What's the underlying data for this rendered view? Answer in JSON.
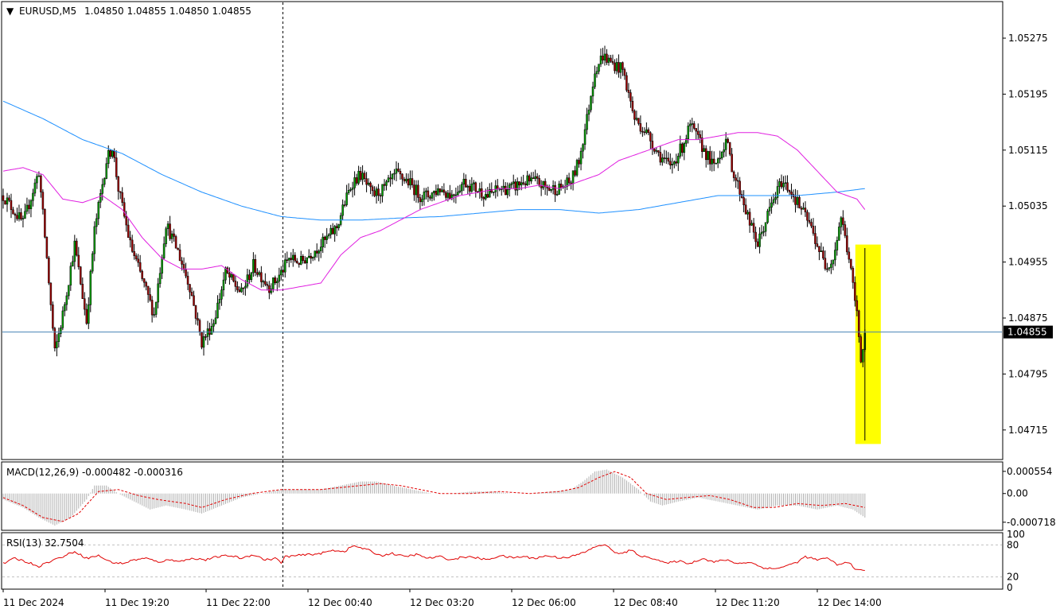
{
  "chart_data": {
    "type": "candlestick",
    "symbol": "EURUSD,M5",
    "ohlc_header": "1.04850 1.04855 1.04850 1.04855",
    "last_price": "1.04855",
    "price_ticks": [
      "1.05275",
      "1.05195",
      "1.05115",
      "1.05035",
      "1.04955",
      "1.04875",
      "1.04795",
      "1.04715"
    ],
    "ylim": [
      1.04675,
      1.05325
    ],
    "time_labels": [
      "11 Dec 2024",
      "11 Dec 19:20",
      "11 Dec 22:00",
      "12 Dec 00:40",
      "12 Dec 03:20",
      "12 Dec 06:00",
      "12 Dec 08:40",
      "12 Dec 11:20",
      "12 Dec 14:00"
    ],
    "close_path": [
      [
        0,
        1.0505
      ],
      [
        10,
        1.0501
      ],
      [
        18,
        1.05085
      ],
      [
        22,
        1.0496
      ],
      [
        26,
        1.04825
      ],
      [
        30,
        1.0488
      ],
      [
        36,
        1.0498
      ],
      [
        42,
        1.0487
      ],
      [
        46,
        1.05
      ],
      [
        52,
        1.051
      ],
      [
        55,
        1.0512
      ],
      [
        58,
        1.0506
      ],
      [
        64,
        1.0498
      ],
      [
        70,
        1.0493
      ],
      [
        76,
        1.0488
      ],
      [
        82,
        1.0501
      ],
      [
        88,
        1.0497
      ],
      [
        94,
        1.0492
      ],
      [
        100,
        1.0484
      ],
      [
        106,
        1.0487
      ],
      [
        112,
        1.0494
      ],
      [
        120,
        1.0491
      ],
      [
        126,
        1.0495
      ],
      [
        134,
        1.0492
      ],
      [
        138,
        1.0493
      ],
      [
        144,
        1.0496
      ],
      [
        150,
        1.04955
      ],
      [
        156,
        1.0497
      ],
      [
        162,
        1.04985
      ],
      [
        168,
        1.05005
      ],
      [
        172,
        1.0504
      ],
      [
        176,
        1.0507
      ],
      [
        180,
        1.0508
      ],
      [
        186,
        1.0505
      ],
      [
        192,
        1.0506
      ],
      [
        198,
        1.0508
      ],
      [
        204,
        1.0507
      ],
      [
        210,
        1.0505
      ],
      [
        214,
        1.0505
      ],
      [
        220,
        1.0506
      ],
      [
        226,
        1.0505
      ],
      [
        232,
        1.0507
      ],
      [
        238,
        1.0506
      ],
      [
        244,
        1.0505
      ],
      [
        250,
        1.0506
      ],
      [
        256,
        1.0506
      ],
      [
        262,
        1.0507
      ],
      [
        268,
        1.0507
      ],
      [
        274,
        1.0506
      ],
      [
        280,
        1.0506
      ],
      [
        286,
        1.0507
      ],
      [
        290,
        1.051
      ],
      [
        294,
        1.0516
      ],
      [
        298,
        1.0523
      ],
      [
        302,
        1.0525
      ],
      [
        306,
        1.0524
      ],
      [
        312,
        1.0523
      ],
      [
        318,
        1.0516
      ],
      [
        324,
        1.0514
      ],
      [
        330,
        1.0511
      ],
      [
        336,
        1.0509
      ],
      [
        342,
        1.0512
      ],
      [
        346,
        1.0515
      ],
      [
        352,
        1.0512
      ],
      [
        358,
        1.0509
      ],
      [
        364,
        1.0513
      ],
      [
        368,
        1.0508
      ],
      [
        372,
        1.0505
      ],
      [
        376,
        1.0501
      ],
      [
        380,
        1.0498
      ],
      [
        386,
        1.0503
      ],
      [
        392,
        1.0507
      ],
      [
        396,
        1.0506
      ],
      [
        400,
        1.0504
      ],
      [
        406,
        1.0501
      ],
      [
        410,
        1.0498
      ],
      [
        414,
        1.0495
      ],
      [
        418,
        1.0496
      ],
      [
        422,
        1.0502
      ],
      [
        426,
        1.0496
      ],
      [
        430,
        1.0488
      ],
      [
        432,
        1.0482
      ],
      [
        433,
        1.0483
      ],
      [
        434,
        1.04855
      ]
    ],
    "ma_slow_path": [
      [
        0,
        1.05185
      ],
      [
        20,
        1.0516
      ],
      [
        40,
        1.0513
      ],
      [
        60,
        1.0511
      ],
      [
        80,
        1.0508
      ],
      [
        100,
        1.05055
      ],
      [
        120,
        1.05035
      ],
      [
        140,
        1.0502
      ],
      [
        160,
        1.05015
      ],
      [
        180,
        1.05015
      ],
      [
        200,
        1.05018
      ],
      [
        220,
        1.0502
      ],
      [
        240,
        1.05025
      ],
      [
        260,
        1.0503
      ],
      [
        280,
        1.0503
      ],
      [
        300,
        1.05025
      ],
      [
        320,
        1.0503
      ],
      [
        340,
        1.0504
      ],
      [
        360,
        1.0505
      ],
      [
        380,
        1.0505
      ],
      [
        400,
        1.0505
      ],
      [
        420,
        1.05055
      ],
      [
        434,
        1.0506
      ]
    ],
    "ma_fast_path": [
      [
        0,
        1.05085
      ],
      [
        10,
        1.0509
      ],
      [
        20,
        1.0508
      ],
      [
        30,
        1.05045
      ],
      [
        40,
        1.0504
      ],
      [
        50,
        1.0505
      ],
      [
        60,
        1.0503
      ],
      [
        70,
        1.0499
      ],
      [
        80,
        1.0496
      ],
      [
        90,
        1.04945
      ],
      [
        100,
        1.04945
      ],
      [
        110,
        1.0495
      ],
      [
        120,
        1.0493
      ],
      [
        130,
        1.04915
      ],
      [
        140,
        1.04915
      ],
      [
        150,
        1.0492
      ],
      [
        160,
        1.04925
      ],
      [
        170,
        1.04965
      ],
      [
        180,
        1.0499
      ],
      [
        190,
        1.05
      ],
      [
        200,
        1.05015
      ],
      [
        210,
        1.0503
      ],
      [
        220,
        1.0504
      ],
      [
        230,
        1.0505
      ],
      [
        240,
        1.05055
      ],
      [
        250,
        1.0506
      ],
      [
        260,
        1.0506
      ],
      [
        270,
        1.05065
      ],
      [
        280,
        1.0506
      ],
      [
        290,
        1.0507
      ],
      [
        300,
        1.0508
      ],
      [
        310,
        1.051
      ],
      [
        320,
        1.0511
      ],
      [
        330,
        1.0512
      ],
      [
        340,
        1.0513
      ],
      [
        350,
        1.0513
      ],
      [
        360,
        1.05135
      ],
      [
        370,
        1.0514
      ],
      [
        380,
        1.0514
      ],
      [
        390,
        1.05135
      ],
      [
        400,
        1.05115
      ],
      [
        410,
        1.05085
      ],
      [
        420,
        1.05055
      ],
      [
        430,
        1.05045
      ],
      [
        434,
        1.0503
      ]
    ],
    "macd": {
      "label": "MACD(12,26,9) -0.000482 -0.000316",
      "ticks": [
        "0.000554",
        "0.00",
        "-0.000718"
      ],
      "ylim": [
        -0.00088,
        0.00075
      ],
      "hist_path": [
        [
          0,
          -0.00015
        ],
        [
          10,
          -0.00035
        ],
        [
          18,
          -0.0006
        ],
        [
          26,
          -0.0008
        ],
        [
          34,
          -0.0006
        ],
        [
          42,
          -0.00015
        ],
        [
          46,
          0.0002
        ],
        [
          52,
          0.0002
        ],
        [
          58,
          0.0
        ],
        [
          66,
          -0.0002
        ],
        [
          74,
          -0.0004
        ],
        [
          82,
          -0.0003
        ],
        [
          92,
          -0.0004
        ],
        [
          100,
          -0.0005
        ],
        [
          110,
          -0.0003
        ],
        [
          120,
          -0.0001
        ],
        [
          130,
          0.0
        ],
        [
          140,
          0.0001
        ],
        [
          150,
          0.0001
        ],
        [
          160,
          0.0001
        ],
        [
          170,
          0.0002
        ],
        [
          180,
          0.0003
        ],
        [
          188,
          0.0003
        ],
        [
          196,
          0.0002
        ],
        [
          206,
          0.0001
        ],
        [
          216,
          0.0
        ],
        [
          226,
          0.0
        ],
        [
          236,
          5e-05
        ],
        [
          246,
          5e-05
        ],
        [
          256,
          0.0
        ],
        [
          266,
          0.0
        ],
        [
          276,
          5e-05
        ],
        [
          286,
          0.0001
        ],
        [
          292,
          0.0003
        ],
        [
          298,
          0.00055
        ],
        [
          304,
          0.0006
        ],
        [
          312,
          0.0004
        ],
        [
          320,
          0.0001
        ],
        [
          326,
          -0.0002
        ],
        [
          332,
          -0.0003
        ],
        [
          340,
          -0.0002
        ],
        [
          350,
          -0.0001
        ],
        [
          360,
          -0.0002
        ],
        [
          370,
          -0.0003
        ],
        [
          380,
          -0.0004
        ],
        [
          390,
          -0.0003
        ],
        [
          400,
          -0.0003
        ],
        [
          410,
          -0.0004
        ],
        [
          420,
          -0.0003
        ],
        [
          428,
          -0.0004
        ],
        [
          434,
          -0.0006
        ]
      ],
      "signal_path": [
        [
          0,
          -0.0001
        ],
        [
          10,
          -0.0003
        ],
        [
          20,
          -0.0006
        ],
        [
          30,
          -0.0007
        ],
        [
          38,
          -0.0005
        ],
        [
          48,
          5e-05
        ],
        [
          58,
          0.0001
        ],
        [
          68,
          -5e-05
        ],
        [
          78,
          -0.00015
        ],
        [
          92,
          -0.00025
        ],
        [
          100,
          -0.00035
        ],
        [
          112,
          -0.00015
        ],
        [
          125,
          0.0
        ],
        [
          140,
          0.0001
        ],
        [
          160,
          0.0001
        ],
        [
          180,
          0.0002
        ],
        [
          190,
          0.00025
        ],
        [
          200,
          0.0002
        ],
        [
          210,
          0.0001
        ],
        [
          220,
          0.0
        ],
        [
          235,
          0.0
        ],
        [
          250,
          5e-05
        ],
        [
          265,
          0.0
        ],
        [
          280,
          5e-05
        ],
        [
          290,
          0.00015
        ],
        [
          300,
          0.0004
        ],
        [
          308,
          0.00055
        ],
        [
          316,
          0.0004
        ],
        [
          324,
          0.0
        ],
        [
          334,
          -0.00015
        ],
        [
          344,
          -0.0001
        ],
        [
          356,
          -5e-05
        ],
        [
          366,
          -0.00015
        ],
        [
          378,
          -0.00035
        ],
        [
          388,
          -0.00035
        ],
        [
          400,
          -0.00025
        ],
        [
          412,
          -0.0003
        ],
        [
          424,
          -0.00025
        ],
        [
          434,
          -0.00035
        ]
      ]
    },
    "rsi": {
      "label": "RSI(13) 32.7504",
      "ticks": [
        "100",
        "80",
        "20",
        "0"
      ],
      "ylim": [
        0,
        100
      ],
      "path": [
        [
          0,
          45
        ],
        [
          6,
          55
        ],
        [
          12,
          48
        ],
        [
          18,
          40
        ],
        [
          24,
          50
        ],
        [
          30,
          58
        ],
        [
          36,
          68
        ],
        [
          42,
          55
        ],
        [
          48,
          60
        ],
        [
          54,
          48
        ],
        [
          60,
          45
        ],
        [
          66,
          52
        ],
        [
          72,
          55
        ],
        [
          78,
          48
        ],
        [
          84,
          52
        ],
        [
          90,
          50
        ],
        [
          96,
          55
        ],
        [
          102,
          52
        ],
        [
          108,
          58
        ],
        [
          114,
          60
        ],
        [
          120,
          55
        ],
        [
          126,
          62
        ],
        [
          132,
          52
        ],
        [
          138,
          55
        ],
        [
          140,
          45
        ],
        [
          142,
          58
        ],
        [
          148,
          60
        ],
        [
          154,
          62
        ],
        [
          160,
          64
        ],
        [
          166,
          70
        ],
        [
          172,
          68
        ],
        [
          176,
          78
        ],
        [
          180,
          75
        ],
        [
          184,
          70
        ],
        [
          190,
          60
        ],
        [
          196,
          64
        ],
        [
          202,
          58
        ],
        [
          208,
          62
        ],
        [
          214,
          55
        ],
        [
          220,
          58
        ],
        [
          226,
          52
        ],
        [
          232,
          58
        ],
        [
          238,
          56
        ],
        [
          244,
          52
        ],
        [
          250,
          60
        ],
        [
          256,
          56
        ],
        [
          262,
          58
        ],
        [
          268,
          55
        ],
        [
          274,
          60
        ],
        [
          280,
          56
        ],
        [
          286,
          58
        ],
        [
          292,
          65
        ],
        [
          296,
          72
        ],
        [
          300,
          80
        ],
        [
          304,
          78
        ],
        [
          310,
          62
        ],
        [
          316,
          70
        ],
        [
          322,
          58
        ],
        [
          328,
          55
        ],
        [
          334,
          45
        ],
        [
          340,
          50
        ],
        [
          346,
          45
        ],
        [
          352,
          55
        ],
        [
          358,
          48
        ],
        [
          364,
          52
        ],
        [
          370,
          45
        ],
        [
          376,
          48
        ],
        [
          382,
          38
        ],
        [
          388,
          35
        ],
        [
          394,
          40
        ],
        [
          400,
          48
        ],
        [
          404,
          58
        ],
        [
          410,
          52
        ],
        [
          416,
          55
        ],
        [
          420,
          42
        ],
        [
          426,
          48
        ],
        [
          430,
          32
        ],
        [
          434,
          32.75
        ]
      ]
    }
  }
}
